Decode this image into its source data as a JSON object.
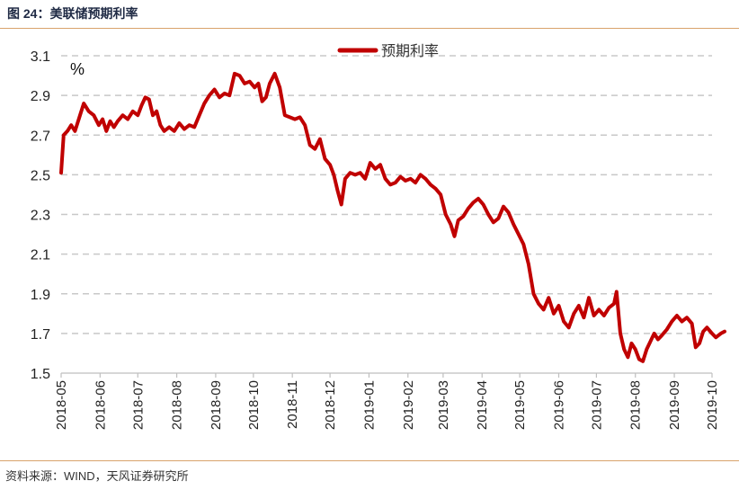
{
  "figure": {
    "title": "图 24：美联储预期利率",
    "source": "资料来源：WIND，天风证券研究所"
  },
  "chart_data": {
    "type": "line",
    "title": "",
    "xlabel": "",
    "ylabel": "",
    "unit_label": "%",
    "ylim": [
      1.5,
      3.1
    ],
    "yticks": [
      "3.1",
      "2.9",
      "2.7",
      "2.5",
      "2.3",
      "2.1",
      "1.9",
      "1.7",
      "1.5"
    ],
    "xticks": [
      "2018-05",
      "2018-06",
      "2018-07",
      "2018-08",
      "2018-09",
      "2018-10",
      "2018-11",
      "2018-12",
      "2019-01",
      "2019-02",
      "2019-03",
      "2019-04",
      "2019-05",
      "2019-06",
      "2019-07",
      "2019-08",
      "2019-09",
      "2019-10"
    ],
    "grid": true,
    "legend_position": "top-center",
    "series": [
      {
        "name": "预期利率",
        "color": "#c00000",
        "points": [
          [
            "2018-05-01",
            2.51
          ],
          [
            "2018-05-03",
            2.7
          ],
          [
            "2018-05-06",
            2.72
          ],
          [
            "2018-05-09",
            2.75
          ],
          [
            "2018-05-12",
            2.72
          ],
          [
            "2018-05-15",
            2.78
          ],
          [
            "2018-05-19",
            2.86
          ],
          [
            "2018-05-23",
            2.82
          ],
          [
            "2018-05-27",
            2.8
          ],
          [
            "2018-05-31",
            2.75
          ],
          [
            "2018-06-03",
            2.78
          ],
          [
            "2018-06-06",
            2.72
          ],
          [
            "2018-06-09",
            2.77
          ],
          [
            "2018-06-12",
            2.74
          ],
          [
            "2018-06-15",
            2.77
          ],
          [
            "2018-06-19",
            2.8
          ],
          [
            "2018-06-23",
            2.78
          ],
          [
            "2018-06-27",
            2.82
          ],
          [
            "2018-07-01",
            2.8
          ],
          [
            "2018-07-04",
            2.85
          ],
          [
            "2018-07-07",
            2.89
          ],
          [
            "2018-07-10",
            2.88
          ],
          [
            "2018-07-13",
            2.8
          ],
          [
            "2018-07-16",
            2.82
          ],
          [
            "2018-07-19",
            2.75
          ],
          [
            "2018-07-22",
            2.72
          ],
          [
            "2018-07-26",
            2.74
          ],
          [
            "2018-07-30",
            2.72
          ],
          [
            "2018-08-03",
            2.76
          ],
          [
            "2018-08-07",
            2.73
          ],
          [
            "2018-08-11",
            2.75
          ],
          [
            "2018-08-15",
            2.74
          ],
          [
            "2018-08-19",
            2.8
          ],
          [
            "2018-08-23",
            2.86
          ],
          [
            "2018-08-27",
            2.9
          ],
          [
            "2018-08-31",
            2.93
          ],
          [
            "2018-09-04",
            2.89
          ],
          [
            "2018-09-08",
            2.91
          ],
          [
            "2018-09-12",
            2.9
          ],
          [
            "2018-09-16",
            3.01
          ],
          [
            "2018-09-20",
            3.0
          ],
          [
            "2018-09-24",
            2.96
          ],
          [
            "2018-09-28",
            2.97
          ],
          [
            "2018-10-02",
            2.94
          ],
          [
            "2018-10-05",
            2.96
          ],
          [
            "2018-10-08",
            2.87
          ],
          [
            "2018-10-11",
            2.89
          ],
          [
            "2018-10-14",
            2.96
          ],
          [
            "2018-10-18",
            3.01
          ],
          [
            "2018-10-22",
            2.94
          ],
          [
            "2018-10-26",
            2.8
          ],
          [
            "2018-10-30",
            2.79
          ],
          [
            "2018-11-03",
            2.78
          ],
          [
            "2018-11-07",
            2.79
          ],
          [
            "2018-11-11",
            2.75
          ],
          [
            "2018-11-15",
            2.65
          ],
          [
            "2018-11-19",
            2.63
          ],
          [
            "2018-11-23",
            2.68
          ],
          [
            "2018-11-27",
            2.58
          ],
          [
            "2018-12-01",
            2.55
          ],
          [
            "2018-12-04",
            2.5
          ],
          [
            "2018-12-07",
            2.42
          ],
          [
            "2018-12-10",
            2.35
          ],
          [
            "2018-12-13",
            2.48
          ],
          [
            "2018-12-17",
            2.51
          ],
          [
            "2018-12-21",
            2.5
          ],
          [
            "2018-12-25",
            2.51
          ],
          [
            "2018-12-29",
            2.48
          ],
          [
            "2019-01-02",
            2.56
          ],
          [
            "2019-01-06",
            2.53
          ],
          [
            "2019-01-10",
            2.55
          ],
          [
            "2019-01-14",
            2.48
          ],
          [
            "2019-01-18",
            2.45
          ],
          [
            "2019-01-22",
            2.46
          ],
          [
            "2019-01-26",
            2.49
          ],
          [
            "2019-01-30",
            2.47
          ],
          [
            "2019-02-03",
            2.48
          ],
          [
            "2019-02-07",
            2.46
          ],
          [
            "2019-02-11",
            2.5
          ],
          [
            "2019-02-15",
            2.48
          ],
          [
            "2019-02-19",
            2.45
          ],
          [
            "2019-02-23",
            2.43
          ],
          [
            "2019-02-27",
            2.4
          ],
          [
            "2019-03-03",
            2.3
          ],
          [
            "2019-03-07",
            2.25
          ],
          [
            "2019-03-10",
            2.19
          ],
          [
            "2019-03-13",
            2.27
          ],
          [
            "2019-03-17",
            2.29
          ],
          [
            "2019-03-21",
            2.33
          ],
          [
            "2019-03-25",
            2.36
          ],
          [
            "2019-03-29",
            2.38
          ],
          [
            "2019-04-02",
            2.35
          ],
          [
            "2019-04-06",
            2.3
          ],
          [
            "2019-04-10",
            2.26
          ],
          [
            "2019-04-14",
            2.28
          ],
          [
            "2019-04-18",
            2.34
          ],
          [
            "2019-04-22",
            2.31
          ],
          [
            "2019-04-26",
            2.25
          ],
          [
            "2019-04-30",
            2.2
          ],
          [
            "2019-05-04",
            2.15
          ],
          [
            "2019-05-08",
            2.05
          ],
          [
            "2019-05-12",
            1.9
          ],
          [
            "2019-05-16",
            1.85
          ],
          [
            "2019-05-20",
            1.82
          ],
          [
            "2019-05-24",
            1.88
          ],
          [
            "2019-05-28",
            1.8
          ],
          [
            "2019-06-01",
            1.84
          ],
          [
            "2019-06-05",
            1.76
          ],
          [
            "2019-06-09",
            1.73
          ],
          [
            "2019-06-13",
            1.8
          ],
          [
            "2019-06-17",
            1.84
          ],
          [
            "2019-06-21",
            1.78
          ],
          [
            "2019-06-25",
            1.88
          ],
          [
            "2019-06-29",
            1.79
          ],
          [
            "2019-07-03",
            1.82
          ],
          [
            "2019-07-07",
            1.79
          ],
          [
            "2019-07-11",
            1.83
          ],
          [
            "2019-07-15",
            1.85
          ],
          [
            "2019-07-17",
            1.91
          ],
          [
            "2019-07-20",
            1.7
          ],
          [
            "2019-07-23",
            1.62
          ],
          [
            "2019-07-26",
            1.58
          ],
          [
            "2019-07-29",
            1.65
          ],
          [
            "2019-08-01",
            1.62
          ],
          [
            "2019-08-04",
            1.57
          ],
          [
            "2019-08-07",
            1.56
          ],
          [
            "2019-08-10",
            1.62
          ],
          [
            "2019-08-13",
            1.66
          ],
          [
            "2019-08-16",
            1.7
          ],
          [
            "2019-08-19",
            1.67
          ],
          [
            "2019-08-22",
            1.69
          ],
          [
            "2019-08-26",
            1.72
          ],
          [
            "2019-08-30",
            1.76
          ],
          [
            "2019-09-03",
            1.79
          ],
          [
            "2019-09-07",
            1.76
          ],
          [
            "2019-09-11",
            1.78
          ],
          [
            "2019-09-15",
            1.75
          ],
          [
            "2019-09-18",
            1.63
          ],
          [
            "2019-09-21",
            1.65
          ],
          [
            "2019-09-24",
            1.71
          ],
          [
            "2019-09-27",
            1.73
          ],
          [
            "2019-10-01",
            1.7
          ],
          [
            "2019-10-04",
            1.68
          ],
          [
            "2019-10-08",
            1.7
          ],
          [
            "2019-10-11",
            1.71
          ]
        ]
      }
    ]
  }
}
